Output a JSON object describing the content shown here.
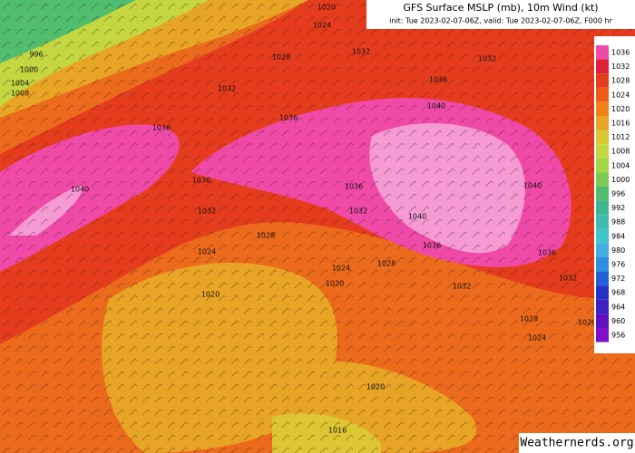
{
  "header": {
    "title": "GFS Surface MSLP (mb), 10m Wind (kt)",
    "subtitle": "init: Tue 2023-02-07-06Z, valid: Tue 2023-02-07-06Z, F000 hr"
  },
  "colorbar": {
    "levels": [
      1036,
      1032,
      1028,
      1024,
      1020,
      1016,
      1012,
      1008,
      1004,
      1000,
      996,
      992,
      988,
      984,
      980,
      976,
      972,
      968,
      964,
      960,
      956
    ],
    "colors": [
      "#f04aa8",
      "#e0203a",
      "#e63c1e",
      "#ec5c18",
      "#f08218",
      "#e8a424",
      "#dcc632",
      "#c4d640",
      "#a4d64a",
      "#7ccc52",
      "#50be6e",
      "#40b68e",
      "#40bcae",
      "#40c4cc",
      "#40aee0",
      "#308ee0",
      "#2060d8",
      "#2432c8",
      "#4020c0",
      "#6010c0",
      "#8010c8"
    ]
  },
  "contour_labels": [
    1020,
    1024,
    996,
    1000,
    1004,
    1008,
    1028,
    1032,
    1032,
    1032,
    1036,
    1040,
    1036,
    1036,
    1040,
    1036,
    1036,
    1040,
    1032,
    1032,
    1040,
    1028,
    1036,
    1036,
    1024,
    1024,
    1028,
    1020,
    1020,
    1032,
    1032,
    1028,
    1024,
    1020,
    1020,
    1016
  ],
  "watermark": "Weathernerds.org"
}
